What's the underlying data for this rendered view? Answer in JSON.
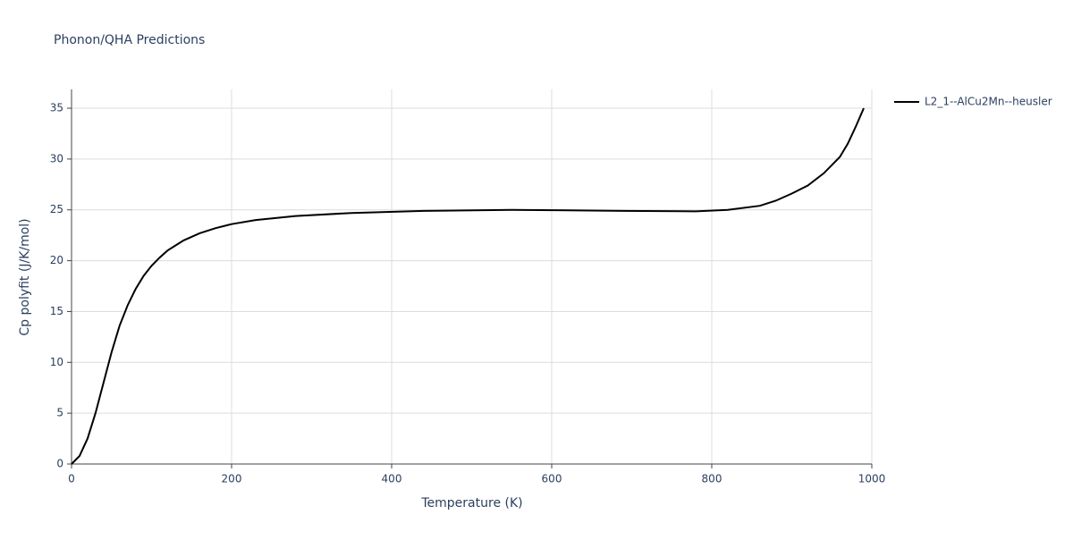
{
  "chart_data": {
    "type": "line",
    "title": "Phonon/QHA Predictions",
    "x_label": "Temperature (K)",
    "y_label": "Cp polyfit (J/K/mol)",
    "x": [
      0,
      10,
      20,
      30,
      40,
      50,
      60,
      70,
      80,
      90,
      100,
      110,
      120,
      130,
      140,
      160,
      180,
      200,
      230,
      280,
      350,
      440,
      550,
      690,
      780,
      820,
      860,
      880,
      900,
      920,
      940,
      960,
      970,
      980,
      990
    ],
    "series": [
      {
        "name": "L2_1--AlCu2Mn--heusler",
        "color": "#000000",
        "values": [
          0,
          0.8,
          2.5,
          5,
          8,
          11,
          13.6,
          15.6,
          17.2,
          18.5,
          19.5,
          20.3,
          21,
          21.5,
          22,
          22.7,
          23.2,
          23.6,
          24,
          24.4,
          24.7,
          24.9,
          25,
          24.9,
          24.85,
          25,
          25.4,
          25.9,
          26.6,
          27.4,
          28.6,
          30.2,
          31.5,
          33.2,
          35
        ]
      }
    ],
    "xlim": [
      0,
      1000
    ],
    "xticks": [
      0,
      200,
      400,
      600,
      800,
      1000
    ],
    "ylim": [
      0,
      36.85
    ],
    "yticks": [
      0,
      5,
      10,
      15,
      20,
      25,
      30,
      35
    ],
    "grid": true,
    "legend": "right"
  }
}
